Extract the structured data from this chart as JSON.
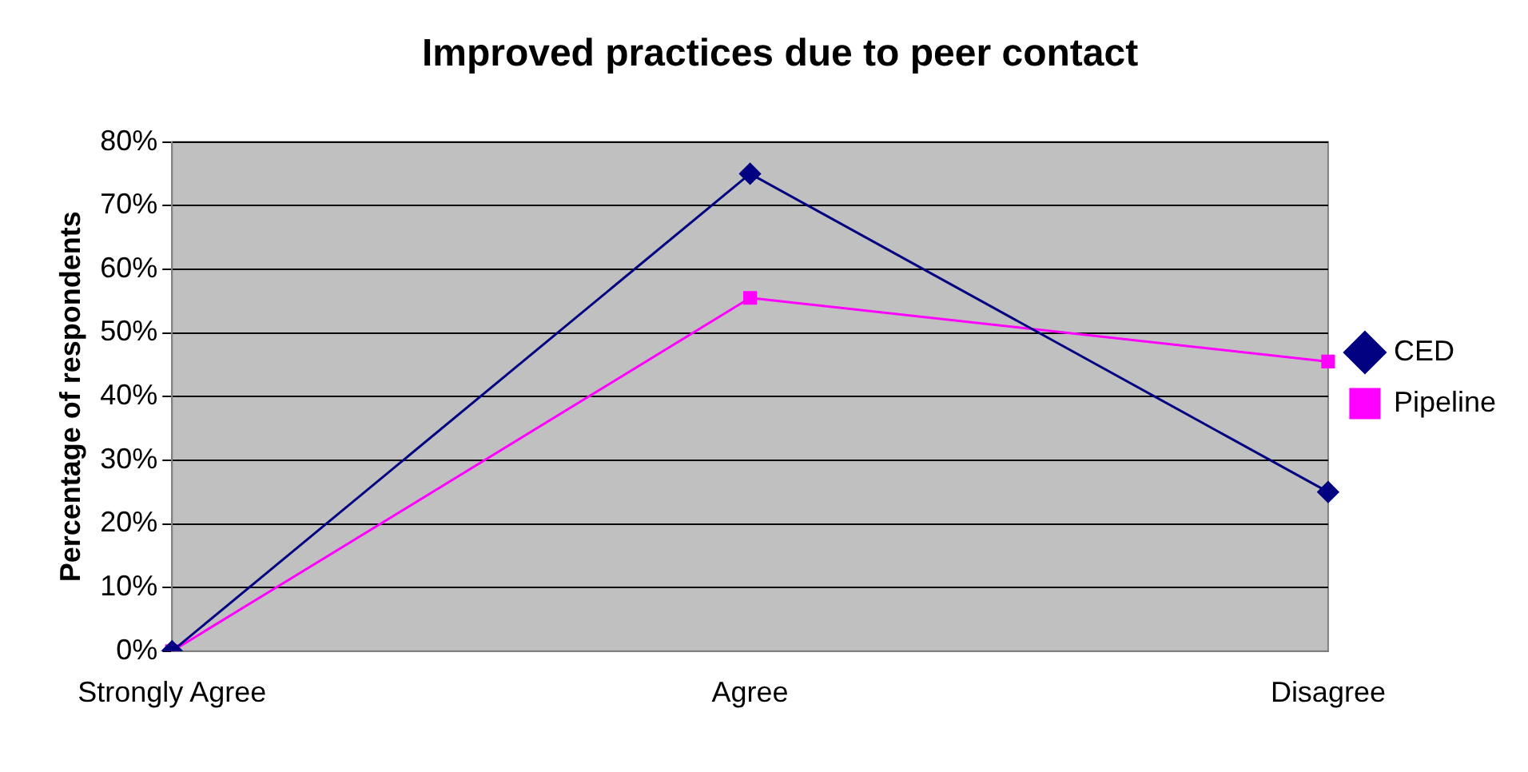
{
  "chart_data": {
    "type": "line",
    "title": "Improved practices due to peer contact",
    "ylabel": "Percentage of respondents",
    "categories": [
      "Strongly Agree",
      "Agree",
      "Disagree"
    ],
    "series": [
      {
        "name": "CED",
        "color": "#000080",
        "values": [
          0,
          75,
          25
        ],
        "marker": "diamond"
      },
      {
        "name": "Pipeline",
        "color": "#ff00ff",
        "values": [
          0,
          55.5,
          45.5
        ],
        "marker": "square"
      }
    ],
    "ylim": [
      0,
      80
    ],
    "yticks": [
      {
        "value": 0,
        "label": "0%"
      },
      {
        "value": 10,
        "label": "10%"
      },
      {
        "value": 20,
        "label": "20%"
      },
      {
        "value": 30,
        "label": "30%"
      },
      {
        "value": 40,
        "label": "40%"
      },
      {
        "value": 50,
        "label": "50%"
      },
      {
        "value": 60,
        "label": "60%"
      },
      {
        "value": 70,
        "label": "70%"
      },
      {
        "value": 80,
        "label": "80%"
      }
    ],
    "grid": "y",
    "legend": "right",
    "line_style": "solid"
  }
}
